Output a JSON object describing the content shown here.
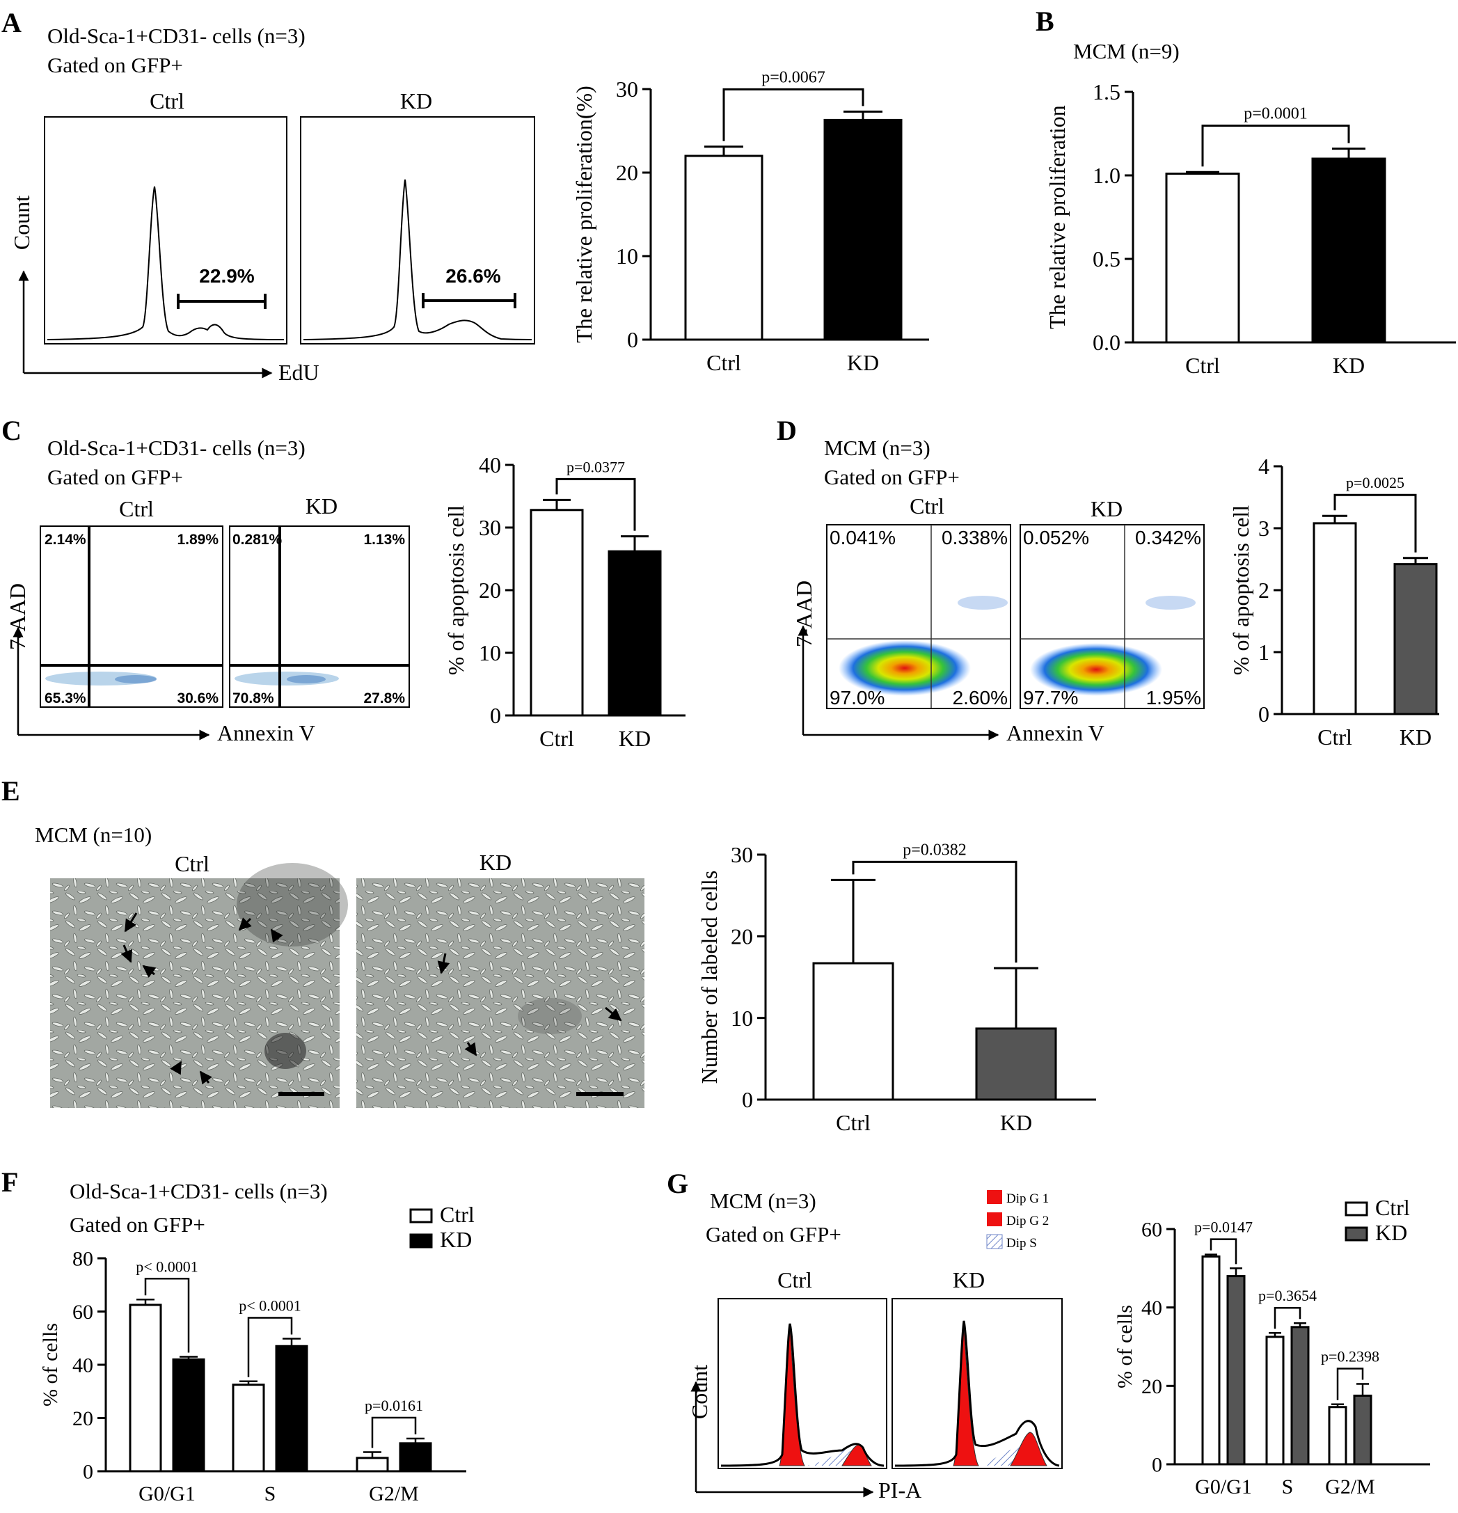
{
  "panels": {
    "A": {
      "letter": "A",
      "header": [
        "Old-Sca-1+CD31- cells (n=3)",
        "Gated on GFP+"
      ],
      "flow": {
        "ctrl_label": "Ctrl",
        "kd_label": "KD",
        "ctrl_gate": "22.9%",
        "kd_gate": "26.6%",
        "y_axis_label": "Count",
        "x_axis_label": "EdU"
      },
      "bar": {
        "type": "bar",
        "categories": [
          "Ctrl",
          "KD"
        ],
        "values": [
          22.0,
          26.3
        ],
        "errors": [
          1.1,
          1.0
        ],
        "colors": [
          "#ffffff",
          "#000000"
        ],
        "ylabel": "The relative proliferation(%)",
        "ylim": [
          0,
          30
        ],
        "yticks": [
          "0",
          "10",
          "20",
          "30"
        ],
        "pvalue": "p=0.0067"
      }
    },
    "B": {
      "letter": "B",
      "header": [
        "MCM (n=9)"
      ],
      "bar": {
        "type": "bar",
        "categories": [
          "Ctrl",
          "KD"
        ],
        "values": [
          1.01,
          1.1
        ],
        "errors": [
          0.01,
          0.06
        ],
        "colors": [
          "#ffffff",
          "#000000"
        ],
        "ylabel": "The relative proliferation",
        "ylim": [
          0,
          1.5
        ],
        "yticks": [
          "0.0",
          "0.5",
          "1.0",
          "1.5"
        ],
        "pvalue": "p=0.0001"
      }
    },
    "C": {
      "letter": "C",
      "header": [
        "Old-Sca-1+CD31- cells (n=3)",
        "Gated on GFP+"
      ],
      "flow": {
        "ctrl_label": "Ctrl",
        "kd_label": "KD",
        "ctrl_quadrants": [
          "2.14%",
          "1.89%",
          "65.3%",
          "30.6%"
        ],
        "kd_quadrants": [
          "0.281%",
          "1.13%",
          "70.8%",
          "27.8%"
        ],
        "y_axis_label": "7-AAD",
        "x_axis_label": "Annexin V"
      },
      "bar": {
        "type": "bar",
        "categories": [
          "Ctrl",
          "KD"
        ],
        "values": [
          32.8,
          26.2
        ],
        "errors": [
          1.6,
          2.4
        ],
        "colors": [
          "#ffffff",
          "#000000"
        ],
        "ylabel": "% of apoptosis cell",
        "ylim": [
          0,
          40
        ],
        "yticks": [
          "0",
          "10",
          "20",
          "30",
          "40"
        ],
        "pvalue": "p=0.0377"
      }
    },
    "D": {
      "letter": "D",
      "header": [
        "MCM (n=3)",
        "Gated on GFP+"
      ],
      "flow": {
        "ctrl_label": "Ctrl",
        "kd_label": "KD",
        "ctrl_quadrants": [
          "0.041%",
          "0.338%",
          "97.0%",
          "2.60%"
        ],
        "kd_quadrants": [
          "0.052%",
          "0.342%",
          "97.7%",
          "1.95%"
        ],
        "y_axis_label": "7-AAD",
        "x_axis_label": "Annexin V"
      },
      "bar": {
        "type": "bar",
        "categories": [
          "Ctrl",
          "KD"
        ],
        "values": [
          3.08,
          2.42
        ],
        "errors": [
          0.12,
          0.1
        ],
        "colors": [
          "#ffffff",
          "#555555"
        ],
        "ylabel": "% of apoptosis cell",
        "ylim": [
          0,
          4
        ],
        "yticks": [
          "0",
          "1",
          "2",
          "3",
          "4"
        ],
        "pvalue": "p=0.0025"
      }
    },
    "E": {
      "letter": "E",
      "header": [
        "MCM (n=10)"
      ],
      "images": {
        "ctrl_label": "Ctrl",
        "kd_label": "KD"
      },
      "bar": {
        "type": "bar",
        "categories": [
          "Ctrl",
          "KD"
        ],
        "values": [
          16.7,
          8.7
        ],
        "errors": [
          10.2,
          7.4
        ],
        "colors": [
          "#ffffff",
          "#555555"
        ],
        "ylabel": "Number of labeled cells",
        "ylim": [
          0,
          30
        ],
        "yticks": [
          "0",
          "10",
          "20",
          "30"
        ],
        "pvalue": "p=0.0382"
      }
    },
    "F": {
      "letter": "F",
      "header": [
        "Old-Sca-1+CD31- cells (n=3)",
        "Gated on GFP+"
      ],
      "bar": {
        "type": "bar",
        "categories": [
          "G0/G1",
          "S",
          "G2/M"
        ],
        "series": [
          {
            "name": "Ctrl",
            "values": [
              62.5,
              32.5,
              5.0
            ],
            "errors": [
              2.0,
              1.3,
              2.2
            ],
            "color": "#ffffff"
          },
          {
            "name": "KD",
            "values": [
              42.0,
              47.0,
              10.5
            ],
            "errors": [
              1.0,
              2.8,
              1.8
            ],
            "color": "#000000"
          }
        ],
        "ylabel": "% of cells",
        "ylim": [
          0,
          80
        ],
        "yticks": [
          "0",
          "20",
          "40",
          "60",
          "80"
        ],
        "pvalues": [
          "p< 0.0001",
          "p< 0.0001",
          "p=0.0161"
        ],
        "legend": "top-right"
      }
    },
    "G": {
      "letter": "G",
      "header": [
        "MCM  (n=3)",
        "Gated on GFP+"
      ],
      "flow": {
        "ctrl_label": "Ctrl",
        "kd_label": "KD",
        "legend": [
          "Dip G 1",
          "Dip G 2",
          "Dip S"
        ],
        "y_axis_label": "Count",
        "x_axis_label": "PI-A"
      },
      "bar": {
        "type": "bar",
        "categories": [
          "G0/G1",
          "S",
          "G2/M"
        ],
        "series": [
          {
            "name": "Ctrl",
            "values": [
              53.0,
              32.5,
              14.6
            ],
            "errors": [
              0.5,
              1.0,
              0.7
            ],
            "color": "#ffffff"
          },
          {
            "name": "KD",
            "values": [
              48.0,
              35.0,
              17.5
            ],
            "errors": [
              2.0,
              1.0,
              3.0
            ],
            "color": "#555555"
          }
        ],
        "ylabel": "% of cells",
        "ylim": [
          0,
          60
        ],
        "yticks": [
          "0",
          "20",
          "40",
          "60"
        ],
        "pvalues": [
          "p=0.0147",
          "p=0.3654",
          "p=0.2398"
        ],
        "legend": "top-right"
      }
    }
  },
  "chart_data": [
    {
      "type": "bar",
      "categories": [
        "Ctrl",
        "KD"
      ],
      "values": [
        22.0,
        26.3
      ],
      "ylabel": "The relative proliferation(%)",
      "ylim": [
        0,
        30
      ]
    },
    {
      "type": "bar",
      "categories": [
        "Ctrl",
        "KD"
      ],
      "values": [
        1.01,
        1.1
      ],
      "ylabel": "The relative proliferation",
      "ylim": [
        0,
        1.5
      ]
    },
    {
      "type": "bar",
      "categories": [
        "Ctrl",
        "KD"
      ],
      "values": [
        32.8,
        26.2
      ],
      "ylabel": "% of apoptosis cell",
      "ylim": [
        0,
        40
      ]
    },
    {
      "type": "bar",
      "categories": [
        "Ctrl",
        "KD"
      ],
      "values": [
        3.08,
        2.42
      ],
      "ylabel": "% of apoptosis cell",
      "ylim": [
        0,
        4
      ]
    },
    {
      "type": "bar",
      "categories": [
        "Ctrl",
        "KD"
      ],
      "values": [
        16.7,
        8.7
      ],
      "ylabel": "Number of labeled cells",
      "ylim": [
        0,
        30
      ]
    },
    {
      "type": "bar",
      "categories": [
        "G0/G1",
        "S",
        "G2/M"
      ],
      "series": [
        {
          "name": "Ctrl",
          "values": [
            62.5,
            32.5,
            5.0
          ]
        },
        {
          "name": "KD",
          "values": [
            42.0,
            47.0,
            10.5
          ]
        }
      ],
      "ylabel": "% of cells",
      "ylim": [
        0,
        80
      ]
    },
    {
      "type": "bar",
      "categories": [
        "G0/G1",
        "S",
        "G2/M"
      ],
      "series": [
        {
          "name": "Ctrl",
          "values": [
            53.0,
            32.5,
            14.6
          ]
        },
        {
          "name": "KD",
          "values": [
            48.0,
            35.0,
            17.5
          ]
        }
      ],
      "ylabel": "% of cells",
      "ylim": [
        0,
        60
      ]
    }
  ]
}
